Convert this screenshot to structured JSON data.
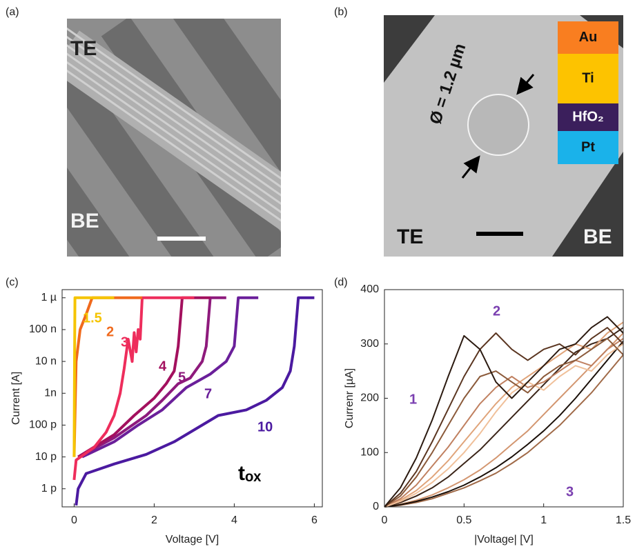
{
  "images": [
    {
      "panel_label": "(a)",
      "labels": [
        "TE",
        "BE"
      ]
    },
    {
      "panel_label": "(b)",
      "labels": [
        "TE",
        "BE"
      ],
      "diameter": "Ø = 1.2 µm",
      "stack": [
        {
          "name": "Au",
          "color": "#f97e20"
        },
        {
          "name": "Ti",
          "color": "#fdc300"
        },
        {
          "name": "HfO₂",
          "color": "#3b1f5c"
        },
        {
          "name": "Pt",
          "color": "#1ab2ea"
        }
      ]
    }
  ],
  "chart_data": [
    {
      "type": "line",
      "panel_label": "(c)",
      "xlabel": "Voltage [V]",
      "ylabel": "Current [A]",
      "log_y": true,
      "xlim": [
        -0.3,
        6.2
      ],
      "ylim": [
        2.7e-13,
        1.8e-06
      ],
      "xticks": [
        0,
        2,
        4,
        6
      ],
      "yticks": [
        {
          "value": 1e-12,
          "label": "1 p"
        },
        {
          "value": 1e-11,
          "label": "10 p"
        },
        {
          "value": 1e-10,
          "label": "100 p"
        },
        {
          "value": 1e-09,
          "label": "1n"
        },
        {
          "value": 1e-08,
          "label": "10 n"
        },
        {
          "value": 1e-07,
          "label": "100 n"
        },
        {
          "value": 1e-06,
          "label": "1 µ"
        }
      ],
      "annotations": [
        "tₒₓ"
      ],
      "series": [
        {
          "name": "10",
          "color": "#4b1aa0",
          "x": [
            0.05,
            0.1,
            0.3,
            1,
            1.8,
            2.5,
            3.2,
            3.6,
            4.3,
            4.8,
            5.2,
            5.4,
            5.5,
            5.6,
            6.0
          ],
          "values": [
            3e-13,
            1e-12,
            3e-12,
            6e-12,
            1.2e-11,
            3e-11,
            1e-10,
            2e-10,
            3e-10,
            6e-10,
            1.5e-09,
            5e-09,
            3e-08,
            1e-06,
            1e-06
          ]
        },
        {
          "name": "7",
          "color": "#6a1f9a",
          "x": [
            0.2,
            1,
            1.6,
            2.2,
            2.8,
            3.4,
            3.8,
            4.0,
            4.1,
            4.6
          ],
          "values": [
            1e-11,
            3e-11,
            1e-10,
            3e-10,
            1.5e-09,
            4e-09,
            1e-08,
            3e-08,
            1e-06,
            1e-06
          ]
        },
        {
          "name": "5",
          "color": "#8e1a7c",
          "x": [
            0.1,
            1,
            1.8,
            2.2,
            2.6,
            2.9,
            3.2,
            3.3,
            3.4,
            3.8
          ],
          "values": [
            1e-11,
            4e-11,
            2e-10,
            6e-10,
            2e-09,
            3e-09,
            1e-08,
            3e-08,
            1e-06,
            1e-06
          ]
        },
        {
          "name": "4",
          "color": "#a3105e",
          "x": [
            0.1,
            1,
            1.5,
            2,
            2.3,
            2.5,
            2.6,
            2.7,
            3.4
          ],
          "values": [
            1e-11,
            5e-11,
            2e-10,
            7e-10,
            2e-09,
            5e-09,
            3e-08,
            1e-06,
            1e-06
          ]
        },
        {
          "name": "3",
          "color": "#ee2d5c",
          "x": [
            0,
            0.05,
            0.5,
            0.8,
            1.0,
            1.15,
            1.25,
            1.35,
            1.45,
            1.5,
            1.55,
            1.6,
            1.65,
            1.7,
            3.0
          ],
          "values": [
            1.9e-12,
            8e-12,
            2e-11,
            6e-11,
            2e-10,
            1e-09,
            6e-09,
            5e-08,
            1e-08,
            8e-08,
            2e-08,
            1e-07,
            5e-08,
            1e-06,
            1e-06
          ]
        },
        {
          "name": "2",
          "color": "#f06a1d",
          "x": [
            0,
            0.05,
            0.15,
            0.3,
            0.45,
            1.7
          ],
          "values": [
            1e-11,
            1e-08,
            1e-07,
            3e-07,
            1e-06,
            1e-06
          ]
        },
        {
          "name": "1.5",
          "color": "#f5c400",
          "x": [
            0,
            0.01,
            0.02,
            1.0
          ],
          "values": [
            1e-11,
            1e-08,
            1e-06,
            1e-06
          ]
        }
      ]
    },
    {
      "type": "line",
      "panel_label": "(d)",
      "xlabel": "|Voltage| [V]",
      "ylabel": "Currenr [µA]",
      "xlim": [
        0,
        1.5
      ],
      "ylim": [
        0,
        400
      ],
      "xticks": [
        0,
        0.5,
        1,
        1.5
      ],
      "yticks": [
        0,
        100,
        200,
        300,
        400
      ],
      "annotations": [
        "1",
        "2",
        "3"
      ],
      "x": [
        0,
        0.1,
        0.2,
        0.3,
        0.4,
        0.5,
        0.6,
        0.7,
        0.8,
        0.9,
        1.0,
        1.1,
        1.2,
        1.3,
        1.4,
        1.5
      ],
      "series": [
        {
          "color": "#a06a48",
          "values": [
            0,
            3,
            8,
            15,
            25,
            35,
            48,
            62,
            80,
            100,
            125,
            150,
            180,
            210,
            245,
            280
          ]
        },
        {
          "color": "#d39670",
          "values": [
            0,
            5,
            12,
            22,
            35,
            50,
            68,
            90,
            115,
            140,
            170,
            200,
            230,
            260,
            290,
            320
          ]
        },
        {
          "color": "#1a0f08",
          "values": [
            0,
            4,
            10,
            18,
            28,
            40,
            55,
            72,
            92,
            115,
            140,
            168,
            200,
            235,
            270,
            305
          ]
        },
        {
          "color": "#3a2418",
          "values": [
            0,
            8,
            20,
            35,
            55,
            80,
            105,
            135,
            165,
            195,
            225,
            255,
            285,
            300,
            310,
            330
          ]
        },
        {
          "color": "#e0a47a",
          "values": [
            0,
            12,
            30,
            55,
            85,
            120,
            155,
            190,
            220,
            240,
            260,
            280,
            300,
            290,
            320,
            340
          ]
        },
        {
          "color": "#c08060",
          "values": [
            0,
            15,
            40,
            75,
            110,
            150,
            190,
            220,
            240,
            220,
            230,
            250,
            270,
            260,
            290,
            310
          ]
        },
        {
          "color": "#f0c09a",
          "values": [
            0,
            10,
            25,
            45,
            70,
            100,
            135,
            175,
            210,
            230,
            215,
            240,
            260,
            250,
            280,
            300
          ]
        },
        {
          "color": "#8b5a3a",
          "values": [
            0,
            20,
            55,
            100,
            150,
            200,
            240,
            250,
            230,
            210,
            240,
            260,
            270,
            290,
            310,
            280
          ]
        },
        {
          "color": "#5a3520",
          "values": [
            0,
            25,
            65,
            120,
            180,
            240,
            290,
            320,
            290,
            270,
            290,
            300,
            280,
            310,
            330,
            300
          ]
        },
        {
          "color": "#2b1a10",
          "values": [
            0,
            35,
            90,
            160,
            240,
            315,
            290,
            230,
            200,
            230,
            260,
            290,
            300,
            330,
            350,
            320
          ]
        }
      ]
    }
  ]
}
